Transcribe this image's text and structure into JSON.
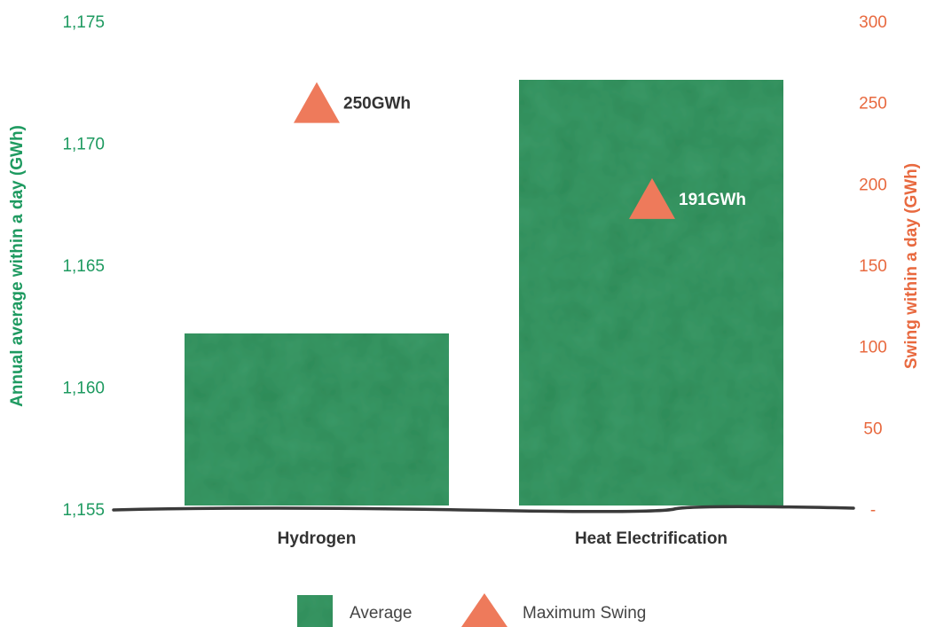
{
  "chart_data": {
    "type": "bar",
    "categories": [
      "Hydrogen",
      "Heat Electrification"
    ],
    "series": [
      {
        "name": "Average",
        "axis": "left",
        "kind": "bar",
        "values": [
          1162.2,
          1172.6
        ],
        "color": "#3b9a68"
      },
      {
        "name": "Maximum Swing",
        "axis": "right",
        "kind": "marker",
        "marker": "triangle",
        "values": [
          250,
          191
        ],
        "labels": [
          "250GWh",
          "191GWh"
        ],
        "color": "#ee7a5b"
      }
    ],
    "y_left": {
      "label": "Annual average within a day (GWh)",
      "range": [
        1155,
        1175
      ],
      "ticks": [
        1155,
        1160,
        1165,
        1170,
        1175
      ],
      "tick_labels": [
        "1,155",
        "1,160",
        "1,165",
        "1,170",
        "1,175"
      ],
      "color": "#1e9a60"
    },
    "y_right": {
      "label": "Swing within a day (GWh)",
      "range": [
        0,
        300
      ],
      "ticks": [
        0,
        50,
        100,
        150,
        200,
        250,
        300
      ],
      "tick_labels": [
        "-",
        "50",
        "100",
        "150",
        "200",
        "250",
        "300"
      ],
      "color": "#e8693f"
    },
    "legend": {
      "position": "bottom-center",
      "items": [
        "Average",
        "Maximum Swing"
      ]
    },
    "grid": false,
    "colors": {
      "label_dark": "#333333",
      "label_light": "#ffffff",
      "baseline": "#3a3a3a"
    }
  }
}
